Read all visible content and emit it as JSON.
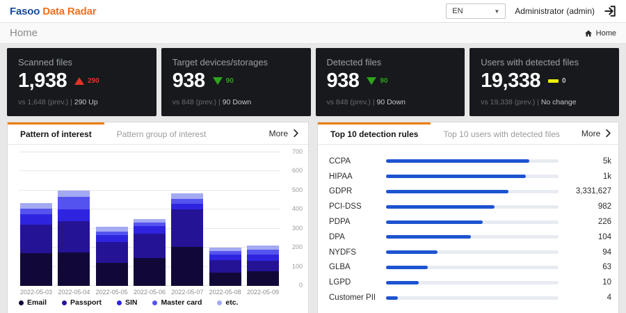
{
  "header": {
    "logo_primary": "Fasoo",
    "logo_secondary": "Data Radar",
    "language": "EN",
    "user": "Administrator (admin)"
  },
  "breadcrumb": {
    "title": "Home",
    "path_label": "Home"
  },
  "cards": [
    {
      "title": "Scanned files",
      "value": "1,938",
      "trend": "up",
      "delta": "290",
      "sub_prefix": "vs 1,648 (prev.) | ",
      "sub_highlight": "290 Up"
    },
    {
      "title": "Target devices/storages",
      "value": "938",
      "trend": "down",
      "delta": "90",
      "sub_prefix": "vs 848 (prev.) | ",
      "sub_highlight": "90 Down"
    },
    {
      "title": "Detected files",
      "value": "938",
      "trend": "down",
      "delta": "90",
      "sub_prefix": "vs 848 (prev.) | ",
      "sub_highlight": "90 Down"
    },
    {
      "title": "Users with detected files",
      "value": "19,338",
      "trend": "none",
      "delta": "0",
      "sub_prefix": "vs 19,338 (prev.) | ",
      "sub_highlight": "No change"
    }
  ],
  "left_panel": {
    "tab_active": "Pattern of interest",
    "tab_inactive": "Pattern group of interest",
    "more_label": "More"
  },
  "right_panel": {
    "tab_active": "Top 10 detection rules",
    "tab_inactive": "Top 10 users with detected files",
    "more_label": "More"
  },
  "colors": {
    "accent_orange": "#ef7d00",
    "logo_blue": "#164a9c",
    "logo_orange": "#f26f21",
    "card_bg": "#17191d",
    "up_red": "#e23328",
    "down_green": "#2fa31c",
    "flat_yellow": "#edf002"
  },
  "chart_data": [
    {
      "type": "bar",
      "stacked": true,
      "title": "Pattern of interest",
      "categories": [
        "2022-05-03",
        "2022-05-04",
        "2022-05-05",
        "2022-05-06",
        "2022-05-07",
        "2022-05-08",
        "2022-05-09"
      ],
      "series": [
        {
          "name": "Email",
          "color": "#120838",
          "values": [
            170,
            175,
            120,
            145,
            205,
            70,
            75
          ]
        },
        {
          "name": "Passport",
          "color": "#241395",
          "values": [
            150,
            165,
            110,
            130,
            195,
            65,
            55
          ]
        },
        {
          "name": "SIN",
          "color": "#2e24e0",
          "values": [
            55,
            60,
            35,
            40,
            30,
            30,
            35
          ]
        },
        {
          "name": "Master card",
          "color": "#5553ef",
          "values": [
            30,
            65,
            20,
            18,
            27,
            18,
            25
          ]
        },
        {
          "name": "etc.",
          "color": "#a3a9f2",
          "values": [
            30,
            35,
            25,
            18,
            28,
            17,
            20
          ]
        }
      ],
      "ylim": [
        0,
        700
      ],
      "yticks": [
        0,
        100,
        200,
        300,
        400,
        500,
        600,
        700
      ],
      "legend_position": "bottom",
      "grid": true
    },
    {
      "type": "bar",
      "orientation": "horizontal",
      "title": "Top 10 detection rules",
      "categories": [
        "CCPA",
        "HIPAA",
        "GDPR",
        "PCI-DSS",
        "PDPA",
        "DPA",
        "NYDFS",
        "GLBA",
        "LGPD",
        "Customer PII"
      ],
      "value_labels": [
        "5k",
        "1k",
        "3,331,627",
        "982",
        "226",
        "104",
        "94",
        "63",
        "10",
        "4"
      ],
      "bar_fill_pct": [
        83,
        81,
        71,
        63,
        56,
        49,
        30,
        24,
        19,
        7
      ],
      "bar_color": "#1d53cf",
      "track_color": "#e9ebf2",
      "grid": false
    }
  ]
}
